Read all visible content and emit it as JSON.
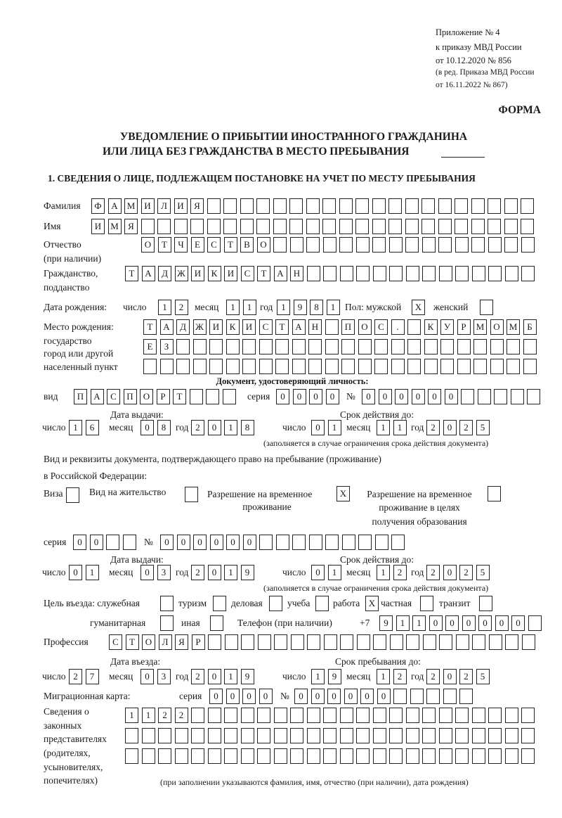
{
  "header": {
    "line1": "Приложение № 4",
    "line2": "к приказу МВД России",
    "line3": "от 10.12.2020 № 856",
    "line4": "(в ред. Приказа МВД России",
    "line5": "от 16.11.2022 № 867)"
  },
  "form_label": "ФОРМА",
  "title": {
    "line1": "УВЕДОМЛЕНИЕ О ПРИБЫТИИ ИНОСТРАННОГО ГРАЖДАНИНА",
    "line2": "ИЛИ ЛИЦА БЕЗ ГРАЖДАНСТВА В МЕСТО ПРЕБЫВАНИЯ"
  },
  "section1": "1. СВЕДЕНИЯ О ЛИЦЕ, ПОДЛЕЖАЩЕМ ПОСТАНОВКЕ НА УЧЕТ ПО МЕСТУ ПРЕБЫВАНИЯ",
  "labels": {
    "surname": "Фамилия",
    "name": "Имя",
    "patronymic1": "Отчество",
    "patronymic2": "(при наличии)",
    "citizenship1": "Гражданство,",
    "citizenship2": "подданство",
    "birth_date": "Дата рождения:",
    "day": "число",
    "month": "месяц",
    "year": "год",
    "sex": "Пол: мужской",
    "female": "женский",
    "birthplace1": "Место рождения:",
    "birthplace2": "государство",
    "birthplace3": "город или другой",
    "birthplace4": "населенный пункт",
    "id_doc": "Документ, удостоверяющий личность:",
    "kind": "вид",
    "series": "серия",
    "number": "№",
    "issue_date": "Дата выдачи:",
    "valid_until": "Срок действия до:",
    "validity_note": "(заполняется в случае ограничения срока действия документа)",
    "stay_doc1": "Вид и реквизиты документа, подтверждающего право на пребывание (проживание)",
    "stay_doc2": "в Российской Федерации:",
    "visa": "Виза",
    "residence_permit": "Вид на жительство",
    "temp_residence1": "Разрешение на временное",
    "temp_residence2": "проживание",
    "temp_edu1": "Разрешение на временное",
    "temp_edu2": "проживание в целях",
    "temp_edu3": "получения образования",
    "purpose": "Цель въезда: служебная",
    "tourism": "туризм",
    "business": "деловая",
    "study": "учеба",
    "work": "работа",
    "private": "частная",
    "transit": "транзит",
    "humanitarian": "гуманитарная",
    "other": "иная",
    "phone": "Телефон (при наличии)",
    "phone_prefix": "+7",
    "profession": "Профессия",
    "entry_date": "Дата въезда:",
    "stay_until": "Срок пребывания до:",
    "migration_card": "Миграционная карта:",
    "reps1": "Сведения о",
    "reps2": "законных",
    "reps3": "представителях",
    "reps4": "(родителях,",
    "reps5": "усыновителях,",
    "reps6": "попечителях)",
    "reps_note": "(при заполнении указываются фамилия, имя, отчество (при наличии), дата рождения)"
  },
  "person": {
    "surname": "ФАМИЛИЯ",
    "name": "ИМЯ",
    "patronymic": "ОТЧЕСТВО",
    "citizenship": "ТАДЖИКИСТАН",
    "birth_day": "12",
    "birth_month": "11",
    "birth_year": "1981",
    "sex_male": "X",
    "sex_female": "",
    "birthplace_line1": "ТАДЖИКИСТАН ПОС. КУРМОМБ",
    "birthplace_line2": "ЕЗ",
    "birthplace_line3": ""
  },
  "id_document": {
    "kind": "ПАСПОРТ",
    "series": "0000",
    "number": "000000",
    "issue_day": "16",
    "issue_month": "08",
    "issue_year": "2018",
    "valid_day": "01",
    "valid_month": "11",
    "valid_year": "2025"
  },
  "stay_document": {
    "visa": "",
    "residence_permit": "",
    "temp_residence": "X",
    "temp_edu": "",
    "series": "00",
    "number": "000000",
    "issue_day": "01",
    "issue_month": "03",
    "issue_year": "2019",
    "valid_day": "01",
    "valid_month": "12",
    "valid_year": "2025"
  },
  "purpose": {
    "official": "",
    "tourism": "",
    "business": "",
    "study": "",
    "work": "X",
    "private": "",
    "transit": "",
    "humanitarian": "",
    "other": ""
  },
  "phone": "911000000",
  "profession": "СТОЛЯР",
  "entry": {
    "day": "27",
    "month": "03",
    "year": "2019",
    "until_day": "19",
    "until_month": "12",
    "until_year": "2025"
  },
  "migration_card": {
    "series": "0000",
    "number": "000000"
  },
  "legal_reps": {
    "line1": "1122",
    "line2": "",
    "line3": ""
  }
}
